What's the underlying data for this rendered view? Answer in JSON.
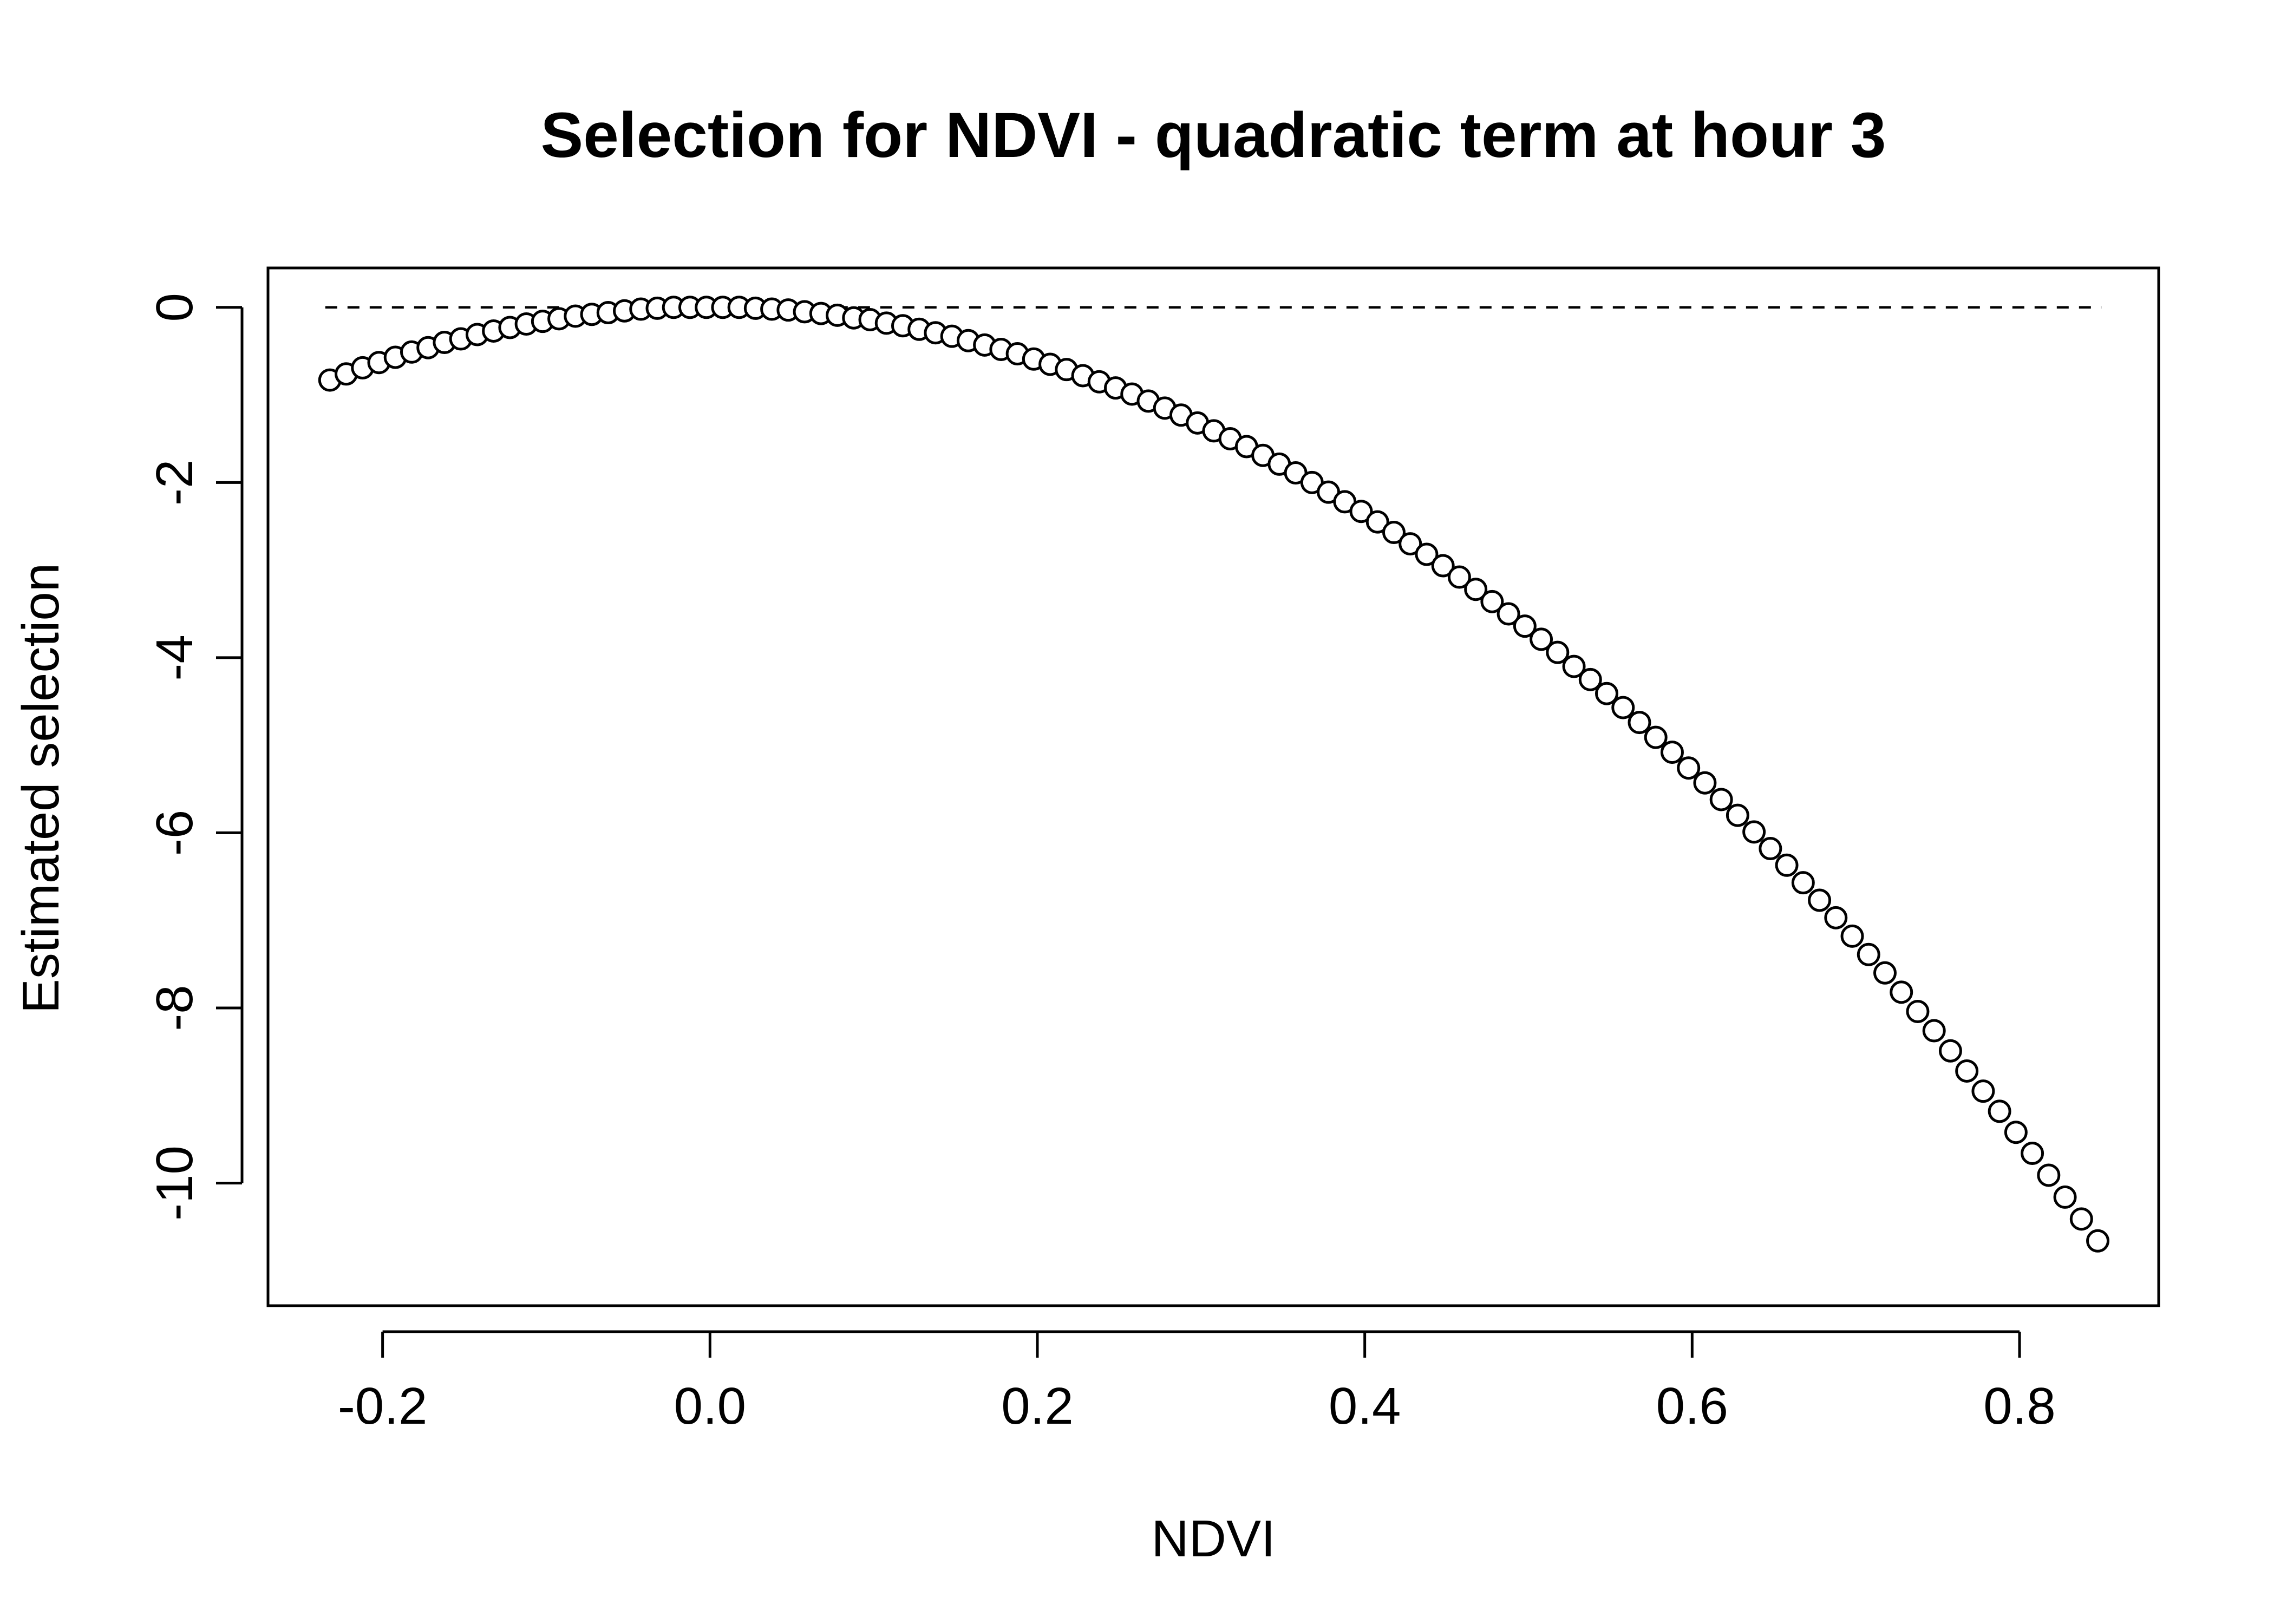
{
  "chart_data": {
    "type": "scatter",
    "title": "Selection for NDVI - quadratic term at hour 3",
    "xlabel": "NDVI",
    "ylabel": "Estimated selection",
    "xlim": [
      -0.27,
      0.885
    ],
    "ylim": [
      -11.4,
      0.45
    ],
    "xticks": [
      -0.2,
      0.0,
      0.2,
      0.4,
      0.6,
      0.8
    ],
    "xtick_labels": [
      "-0.2",
      "0.0",
      "0.2",
      "0.4",
      "0.6",
      "0.8"
    ],
    "yticks": [
      0,
      -2,
      -4,
      -6,
      -8,
      -10
    ],
    "ytick_labels": [
      "0",
      "-2",
      "-4",
      "-6",
      "-8",
      "-10"
    ],
    "grid": false,
    "legend": false,
    "reference_line": {
      "y": 0,
      "style": "dashed",
      "x_start": -0.235,
      "x_end": 0.85
    },
    "series": [
      {
        "marker": "open-circle",
        "x": [
          -0.2322,
          -0.2222,
          -0.2122,
          -0.2022,
          -0.1922,
          -0.1822,
          -0.1722,
          -0.1622,
          -0.1522,
          -0.1422,
          -0.1322,
          -0.1222,
          -0.1122,
          -0.1022,
          -0.0922,
          -0.0822,
          -0.0722,
          -0.0622,
          -0.0522,
          -0.0422,
          -0.0322,
          -0.0222,
          -0.0122,
          -0.0022,
          0.0078,
          0.0178,
          0.0278,
          0.0378,
          0.0478,
          0.0578,
          0.0678,
          0.0778,
          0.0878,
          0.0978,
          0.1078,
          0.1178,
          0.1278,
          0.1378,
          0.1478,
          0.1578,
          0.1678,
          0.1778,
          0.1878,
          0.1978,
          0.2078,
          0.2178,
          0.2278,
          0.2378,
          0.2478,
          0.2578,
          0.2678,
          0.2778,
          0.2878,
          0.2978,
          0.3078,
          0.3178,
          0.3278,
          0.3378,
          0.3478,
          0.3578,
          0.3678,
          0.3778,
          0.3878,
          0.3978,
          0.4078,
          0.4178,
          0.4278,
          0.4378,
          0.4478,
          0.4578,
          0.4678,
          0.4778,
          0.4878,
          0.4978,
          0.5078,
          0.5178,
          0.5278,
          0.5378,
          0.5478,
          0.5578,
          0.5678,
          0.5778,
          0.5878,
          0.5978,
          0.6078,
          0.6178,
          0.6278,
          0.6378,
          0.6478,
          0.6578,
          0.6678,
          0.6778,
          0.6878,
          0.6978,
          0.7078,
          0.7178,
          0.7278,
          0.7378,
          0.7478,
          0.7578,
          0.7678,
          0.7778,
          0.7878,
          0.7978,
          0.8078,
          0.8178,
          0.8278,
          0.8378,
          0.8478
        ],
        "y": [
          -0.83,
          -0.76,
          -0.69,
          -0.63,
          -0.57,
          -0.51,
          -0.46,
          -0.4,
          -0.36,
          -0.31,
          -0.27,
          -0.23,
          -0.19,
          -0.16,
          -0.13,
          -0.1,
          -0.08,
          -0.06,
          -0.04,
          -0.02,
          -0.01,
          -0.0,
          0.0,
          0.0,
          0.0,
          -0.0,
          -0.01,
          -0.02,
          -0.03,
          -0.05,
          -0.07,
          -0.09,
          -0.12,
          -0.14,
          -0.18,
          -0.21,
          -0.25,
          -0.29,
          -0.33,
          -0.38,
          -0.43,
          -0.48,
          -0.53,
          -0.59,
          -0.65,
          -0.71,
          -0.78,
          -0.85,
          -0.92,
          -0.99,
          -1.07,
          -1.15,
          -1.23,
          -1.32,
          -1.41,
          -1.5,
          -1.59,
          -1.69,
          -1.79,
          -1.89,
          -2.0,
          -2.11,
          -2.22,
          -2.33,
          -2.45,
          -2.57,
          -2.7,
          -2.82,
          -2.95,
          -3.08,
          -3.22,
          -3.36,
          -3.5,
          -3.64,
          -3.79,
          -3.94,
          -4.1,
          -4.25,
          -4.41,
          -4.57,
          -4.74,
          -4.91,
          -5.08,
          -5.26,
          -5.43,
          -5.62,
          -5.8,
          -5.99,
          -6.18,
          -6.37,
          -6.57,
          -6.77,
          -6.97,
          -7.18,
          -7.39,
          -7.6,
          -7.82,
          -8.04,
          -8.26,
          -8.49,
          -8.72,
          -8.95,
          -9.18,
          -9.42,
          -9.66,
          -9.91,
          -10.16,
          -10.41,
          -10.66
        ]
      }
    ]
  }
}
